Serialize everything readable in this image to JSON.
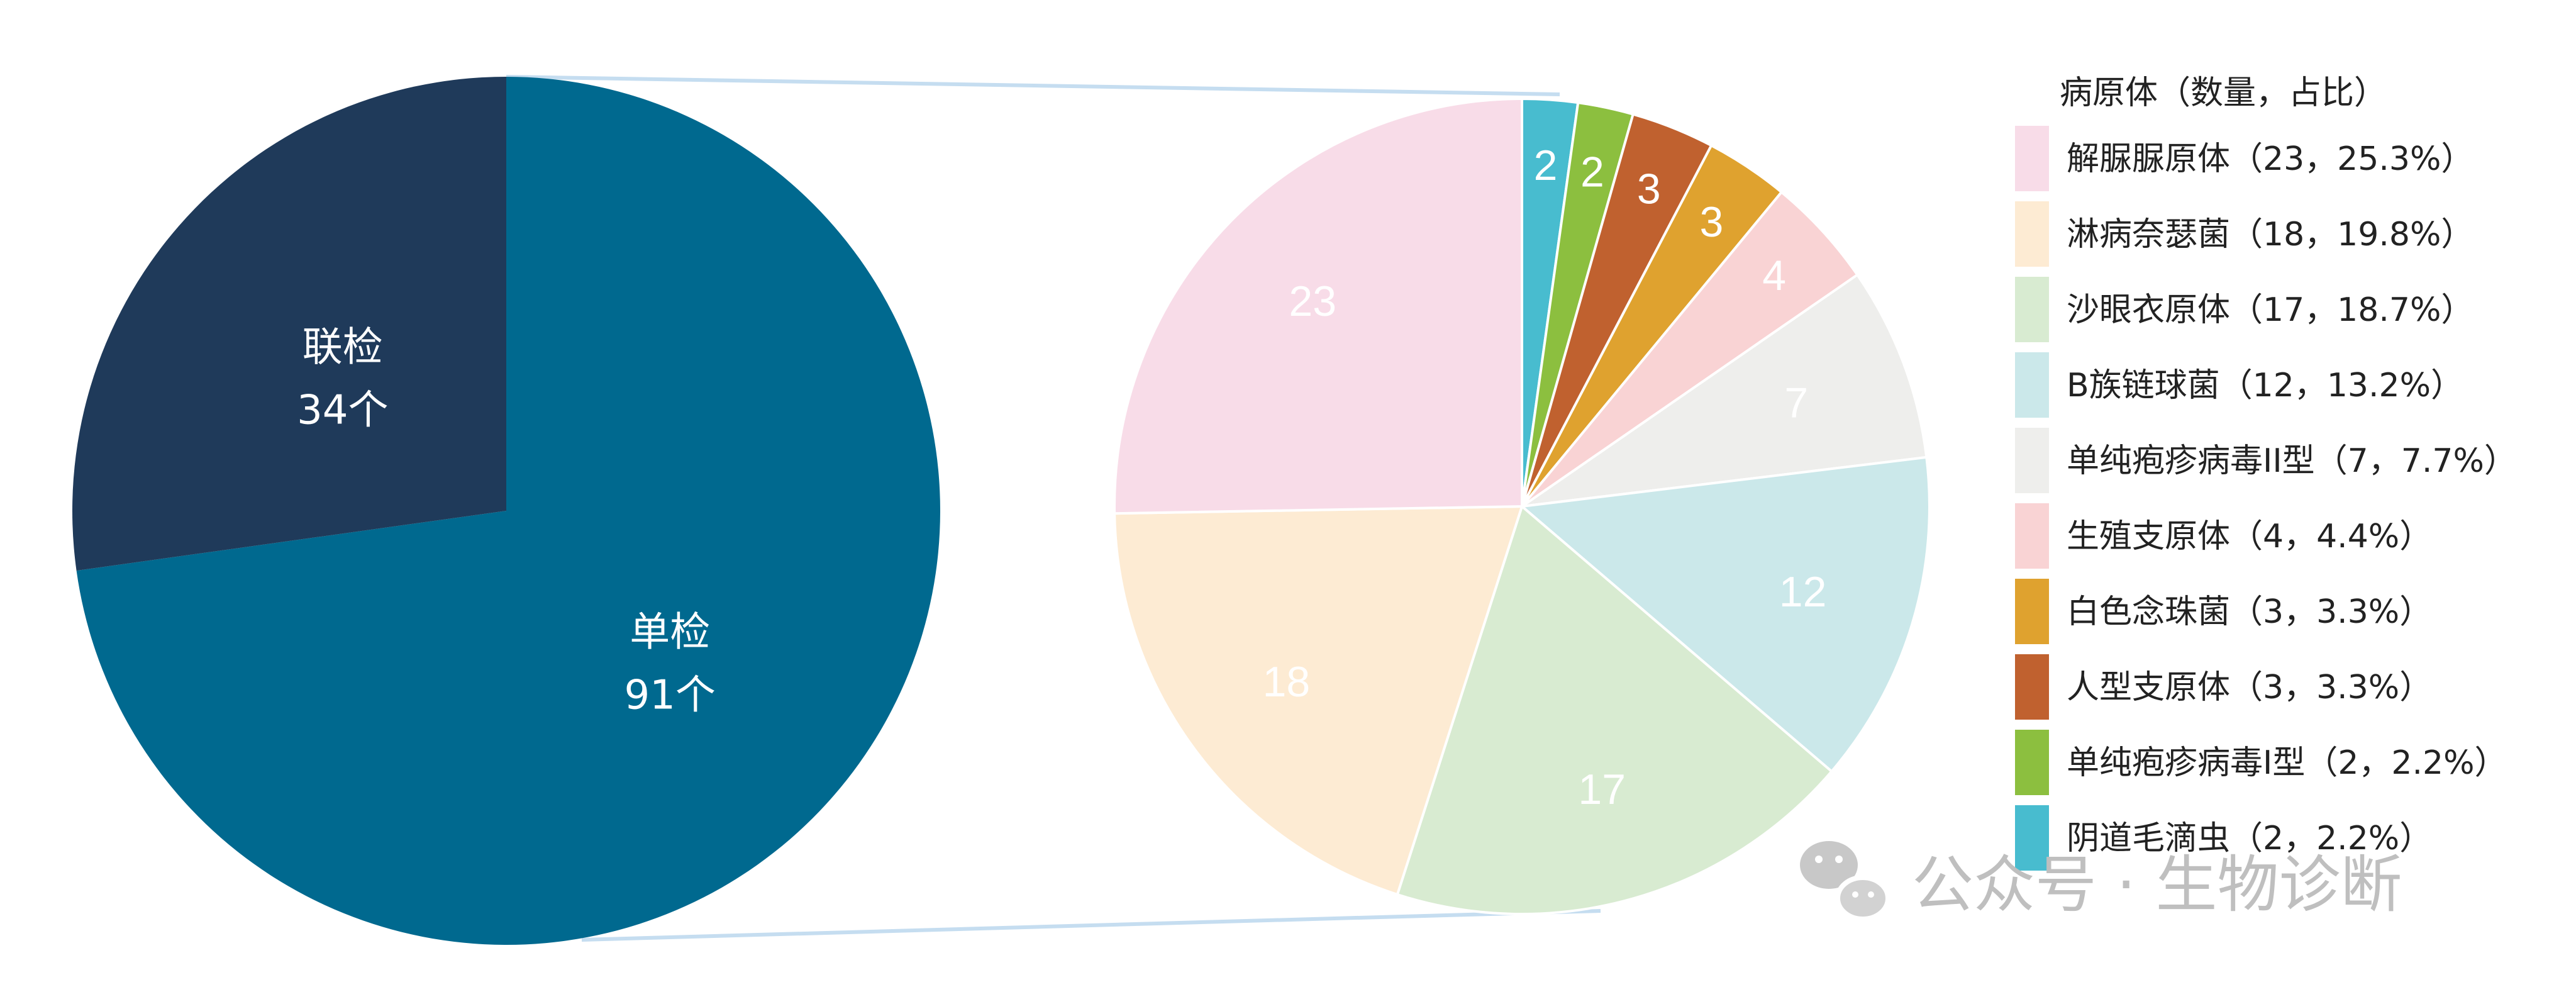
{
  "chart_data": [
    {
      "type": "pie",
      "categories": [
        "单检",
        "联检"
      ],
      "values": [
        91,
        34
      ],
      "unit": "个",
      "colors": [
        "#00698F",
        "#1F3A5A"
      ]
    },
    {
      "type": "pie",
      "legend_title": "病原体（数量，占比）",
      "legend_placement": "right",
      "categories": [
        "解脲脲原体",
        "淋病奈瑟菌",
        "沙眼衣原体",
        "B族链球菌",
        "单纯疱疹病毒II型",
        "生殖支原体",
        "白色念珠菌",
        "人型支原体",
        "单纯疱疹病毒I型",
        "阴道毛滴虫"
      ],
      "values": [
        23,
        18,
        17,
        12,
        7,
        4,
        3,
        3,
        2,
        2
      ],
      "percents": [
        "25.3%",
        "19.8%",
        "18.7%",
        "13.2%",
        "7.7%",
        "4.4%",
        "3.3%",
        "3.3%",
        "2.2%",
        "2.2%"
      ],
      "colors": [
        "#F8DCE8",
        "#FDEBD3",
        "#D8EBD1",
        "#CBE8EA",
        "#EEEEEC",
        "#F9D3D4",
        "#DFA22F",
        "#C0612F",
        "#8CBF3F",
        "#48BCCF"
      ]
    }
  ],
  "watermark": "公众号 · 生物诊断"
}
